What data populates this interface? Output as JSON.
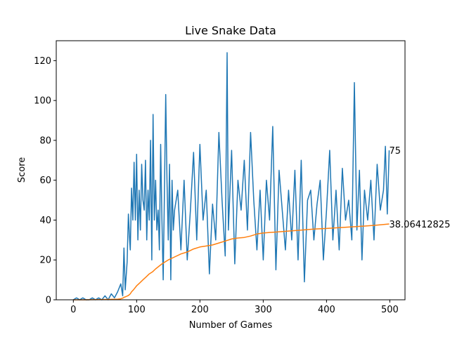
{
  "chart_data": {
    "type": "line",
    "title": "Live Snake Data",
    "xlabel": "Number of Games",
    "ylabel": "Score",
    "xlim": [
      -27,
      524
    ],
    "ylim": [
      0,
      130
    ],
    "xticks": [
      0,
      100,
      200,
      300,
      400,
      500
    ],
    "yticks": [
      0,
      20,
      40,
      60,
      80,
      100,
      120
    ],
    "grid": false,
    "end_labels": {
      "scores": "75",
      "mean_scores": "38.06412825"
    },
    "series": [
      {
        "color": "#1f77b4",
        "x": [
          0,
          5,
          10,
          15,
          20,
          25,
          30,
          35,
          40,
          45,
          50,
          55,
          60,
          65,
          70,
          75,
          78,
          80,
          82,
          85,
          87,
          89,
          90,
          92,
          94,
          96,
          98,
          100,
          102,
          104,
          106,
          108,
          110,
          112,
          114,
          116,
          118,
          120,
          122,
          124,
          126,
          128,
          130,
          132,
          134,
          136,
          138,
          140,
          142,
          144,
          146,
          148,
          150,
          152,
          154,
          156,
          158,
          160,
          165,
          170,
          175,
          180,
          185,
          190,
          195,
          200,
          205,
          210,
          215,
          220,
          225,
          230,
          235,
          240,
          243,
          245,
          250,
          255,
          260,
          265,
          270,
          275,
          280,
          285,
          290,
          295,
          300,
          305,
          310,
          315,
          320,
          325,
          330,
          335,
          340,
          345,
          350,
          355,
          360,
          365,
          370,
          375,
          380,
          385,
          390,
          395,
          400,
          405,
          410,
          415,
          420,
          425,
          430,
          435,
          440,
          444,
          448,
          452,
          456,
          460,
          465,
          470,
          475,
          480,
          485,
          490,
          493,
          496,
          499
        ],
        "values": [
          0,
          1,
          0,
          1,
          0,
          0,
          1,
          0,
          1,
          0,
          2,
          0,
          3,
          1,
          4,
          8,
          2,
          26,
          5,
          19,
          43,
          30,
          25,
          56,
          40,
          69,
          40,
          73,
          30,
          55,
          35,
          68,
          50,
          45,
          70,
          30,
          55,
          40,
          80,
          20,
          93,
          40,
          60,
          35,
          45,
          25,
          78,
          40,
          10,
          55,
          103,
          60,
          30,
          68,
          10,
          60,
          35,
          45,
          55,
          25,
          60,
          20,
          45,
          74,
          30,
          78,
          40,
          55,
          13,
          48,
          30,
          84,
          50,
          22,
          124,
          35,
          75,
          18,
          60,
          45,
          70,
          35,
          84,
          50,
          25,
          55,
          20,
          60,
          40,
          87,
          15,
          65,
          45,
          25,
          55,
          30,
          65,
          20,
          70,
          9,
          50,
          55,
          30,
          48,
          60,
          20,
          45,
          75,
          30,
          55,
          25,
          66,
          40,
          50,
          30,
          109,
          35,
          65,
          20,
          55,
          40,
          60,
          30,
          68,
          45,
          55,
          77,
          43,
          75
        ]
      },
      {
        "color": "#ff7f0e",
        "x": [
          0,
          20,
          40,
          60,
          70,
          75,
          78,
          80,
          83,
          86,
          88,
          90,
          92,
          95,
          100,
          105,
          110,
          115,
          120,
          125,
          130,
          140,
          150,
          160,
          170,
          180,
          190,
          200,
          210,
          220,
          230,
          240,
          250,
          260,
          270,
          280,
          290,
          300,
          310,
          320,
          340,
          360,
          380,
          400,
          420,
          440,
          460,
          480,
          499
        ],
        "values": [
          0,
          0,
          0.1,
          0.2,
          0.3,
          0.5,
          0.8,
          1.2,
          1.6,
          2.0,
          2.4,
          3.0,
          4.0,
          5.0,
          7.0,
          8.5,
          10.0,
          11.5,
          13.0,
          14.0,
          15.5,
          18.0,
          20.0,
          21.5,
          23.0,
          24.0,
          25.5,
          26.5,
          27.0,
          27.5,
          28.5,
          29.5,
          30.5,
          31.0,
          31.3,
          32.0,
          33.0,
          33.5,
          33.8,
          34.0,
          34.5,
          35.0,
          35.5,
          35.8,
          36.2,
          36.6,
          37.0,
          37.5,
          38.06
        ]
      }
    ]
  }
}
